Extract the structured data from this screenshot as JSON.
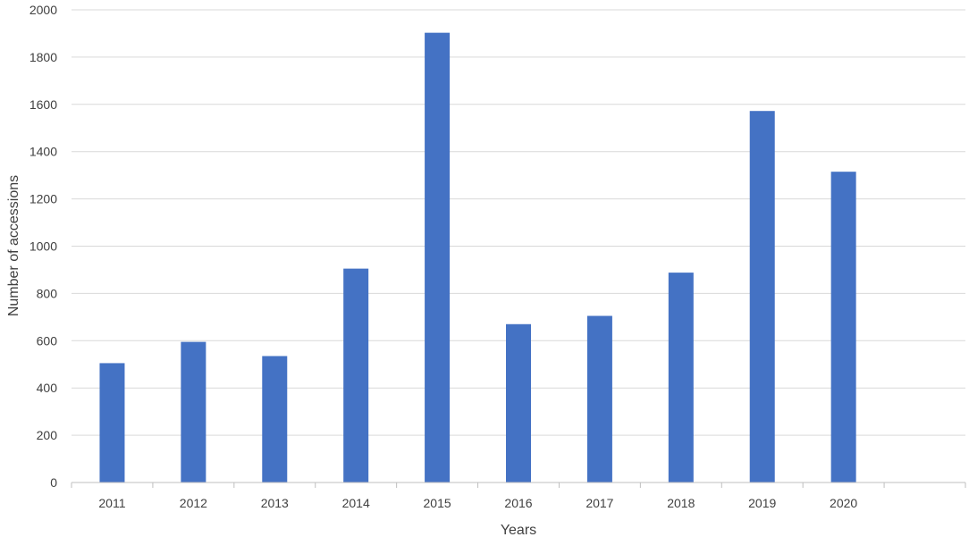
{
  "chart_data": {
    "type": "bar",
    "xlabel": "Years",
    "ylabel": "Number of accessions",
    "categories": [
      "2011",
      "2012",
      "2013",
      "2014",
      "2015",
      "2016",
      "2017",
      "2018",
      "2019",
      "2020",
      ""
    ],
    "values": [
      505,
      595,
      535,
      905,
      1903,
      670,
      705,
      888,
      1572,
      1315,
      null
    ],
    "ylim": [
      0,
      2000
    ],
    "yticks": [
      0,
      200,
      400,
      600,
      800,
      1000,
      1200,
      1400,
      1600,
      1800,
      2000
    ],
    "grid": true,
    "legend": "none",
    "bar_color": "#4472c4"
  }
}
